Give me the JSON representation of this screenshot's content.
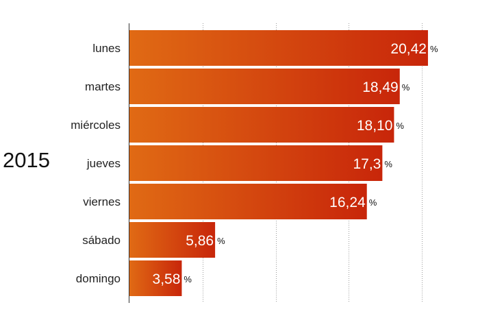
{
  "chart_data": {
    "type": "bar",
    "orientation": "horizontal",
    "group_label": "2015",
    "categories": [
      "lunes",
      "martes",
      "miércoles",
      "jueves",
      "viernes",
      "sábado",
      "domingo"
    ],
    "values": [
      20.42,
      18.49,
      18.1,
      17.3,
      16.24,
      5.86,
      3.58
    ],
    "value_labels": [
      "20,42",
      "18,49",
      "18,10",
      "17,3",
      "16,24",
      "5,86",
      "3,58"
    ],
    "unit": "%",
    "xlim": [
      0,
      20
    ],
    "grid": "vertical dotted",
    "colors": {
      "bar_start": "#e06a14",
      "bar_end": "#c8260a"
    }
  }
}
